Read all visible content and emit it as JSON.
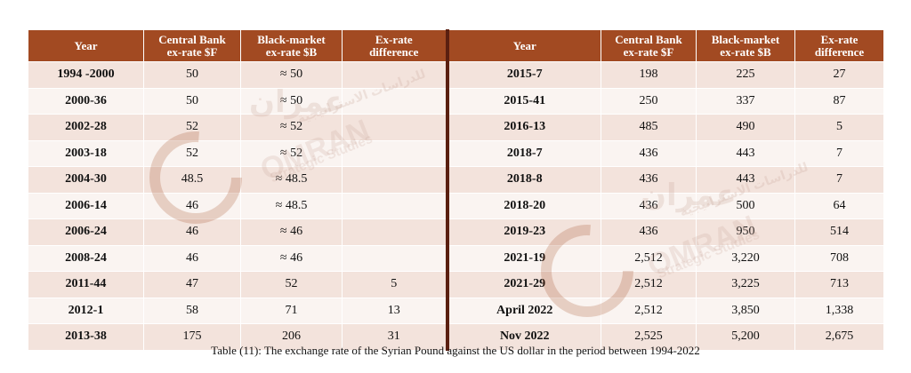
{
  "headers": {
    "year": "Year",
    "central": [
      "Central Bank",
      "ex-rate $F"
    ],
    "black": [
      "Black-market",
      "ex-rate $B"
    ],
    "diff": [
      "Ex-rate",
      "difference"
    ]
  },
  "left_rows": [
    {
      "year": "1994 -2000",
      "central": "50",
      "black": "≈ 50",
      "diff": ""
    },
    {
      "year": "2000-36",
      "central": "50",
      "black": "≈ 50",
      "diff": ""
    },
    {
      "year": "2002-28",
      "central": "52",
      "black": "≈ 52",
      "diff": ""
    },
    {
      "year": "2003-18",
      "central": "52",
      "black": "≈ 52",
      "diff": ""
    },
    {
      "year": "2004-30",
      "central": "48.5",
      "black": "≈ 48.5",
      "diff": ""
    },
    {
      "year": "2006-14",
      "central": "46",
      "black": "≈ 48.5",
      "diff": ""
    },
    {
      "year": "2006-24",
      "central": "46",
      "black": "≈ 46",
      "diff": ""
    },
    {
      "year": "2008-24",
      "central": "46",
      "black": "≈ 46",
      "diff": ""
    },
    {
      "year": "2011-44",
      "central": "47",
      "black": "52",
      "diff": "5"
    },
    {
      "year": "2012-1",
      "central": "58",
      "black": "71",
      "diff": "13"
    },
    {
      "year": "2013-38",
      "central": "175",
      "black": "206",
      "diff": "31"
    }
  ],
  "right_rows": [
    {
      "year": "2015-7",
      "central": "198",
      "black": "225",
      "diff": "27"
    },
    {
      "year": "2015-41",
      "central": "250",
      "black": "337",
      "diff": "87"
    },
    {
      "year": "2016-13",
      "central": "485",
      "black": "490",
      "diff": "5"
    },
    {
      "year": "2018-7",
      "central": "436",
      "black": "443",
      "diff": "7"
    },
    {
      "year": "2018-8",
      "central": "436",
      "black": "443",
      "diff": "7"
    },
    {
      "year": "2018-20",
      "central": "436",
      "black": "500",
      "diff": "64"
    },
    {
      "year": "2019-23",
      "central": "436",
      "black": "950",
      "diff": "514"
    },
    {
      "year": "2021-19",
      "central": "2,512",
      "black": "3,220",
      "diff": "708"
    },
    {
      "year": "2021-29",
      "central": "2,512",
      "black": "3,225",
      "diff": "713"
    },
    {
      "year": "April 2022",
      "central": "2,512",
      "black": "3,850",
      "diff": "1,338"
    },
    {
      "year": "Nov 2022",
      "central": "2,525",
      "black": "5,200",
      "diff": "2,675"
    }
  ],
  "caption": "Table (11): The exchange rate of the Syrian Pound against the US dollar in the period between 1994-2022",
  "watermark": {
    "arabic": "عمران",
    "arabic_sub": "للدراسات الاستراتيجية",
    "name": "OMRAN",
    "sub": "Strategic Studies"
  },
  "colors": {
    "header_bg": "#a24a22",
    "row_odd": "#f3e3dc",
    "row_even": "#faf4f1",
    "separator": "#5a1f10"
  }
}
